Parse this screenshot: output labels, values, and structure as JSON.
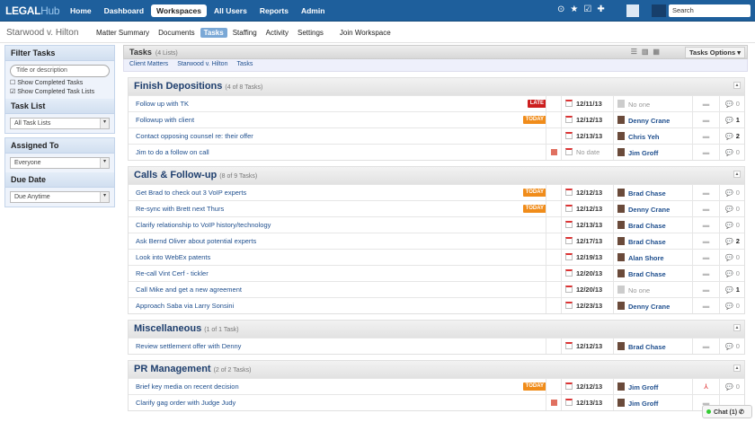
{
  "app": {
    "logo": "LEGALHub",
    "nav": [
      "Home",
      "Dashboard",
      "Workspaces",
      "All Users",
      "Reports",
      "Admin"
    ],
    "active_nav": "Workspaces",
    "search_placeholder": "Search"
  },
  "matter": {
    "title": "Starwood v. Hilton",
    "tabs": [
      "Matter Summary",
      "Documents",
      "Tasks",
      "Staffing",
      "Activity",
      "Settings"
    ],
    "active_tab": "Tasks",
    "join": "Join Workspace"
  },
  "sidebar": {
    "filter_title": "Filter Tasks",
    "search_placeholder": "Title or description",
    "show_completed_tasks": "Show Completed Tasks",
    "show_completed_lists": "Show Completed Task Lists",
    "show_completed_tasks_checked": false,
    "show_completed_lists_checked": true,
    "task_list_title": "Task List",
    "task_list_value": "All Task Lists",
    "assigned_title": "Assigned To",
    "assigned_value": "Everyone",
    "due_title": "Due Date",
    "due_value": "Due Anytime"
  },
  "main": {
    "title": "Tasks",
    "count": "(4 Lists)",
    "options": "Tasks Options",
    "breadcrumb": [
      "Client Matters",
      "Starwood v. Hilton",
      "Tasks"
    ],
    "sections": [
      {
        "name": "Finish Depositions",
        "count": "(4 of 8 Tasks)",
        "rows": [
          {
            "title": "Follow up with TK",
            "badge": "LATE",
            "flag": false,
            "date": "12/11/13",
            "assignee": "No one",
            "comments": "0"
          },
          {
            "title": "Followup with client",
            "badge": "TODAY",
            "flag": false,
            "date": "12/12/13",
            "assignee": "Denny Crane",
            "comments": "1"
          },
          {
            "title": "Contact opposing counsel re: their offer",
            "badge": "",
            "flag": false,
            "date": "12/13/13",
            "assignee": "Chris Yeh",
            "comments": "2"
          },
          {
            "title": "Jim to do a follow on call",
            "badge": "",
            "flag": true,
            "date": "No date",
            "assignee": "Jim Groff",
            "comments": "0"
          }
        ]
      },
      {
        "name": "Calls & Follow-up",
        "count": "(8 of 9 Tasks)",
        "rows": [
          {
            "title": "Get Brad to check out 3 VoIP experts",
            "badge": "TODAY",
            "flag": false,
            "date": "12/12/13",
            "assignee": "Brad Chase",
            "comments": "0"
          },
          {
            "title": "Re-sync with Brett next Thurs",
            "badge": "TODAY",
            "flag": false,
            "date": "12/12/13",
            "assignee": "Denny Crane",
            "comments": "0"
          },
          {
            "title": "Clarify relationship to VoIP history/technology",
            "badge": "",
            "flag": false,
            "date": "12/13/13",
            "assignee": "Brad Chase",
            "comments": "0"
          },
          {
            "title": "Ask Bernd Oliver about potential experts",
            "badge": "",
            "flag": false,
            "date": "12/17/13",
            "assignee": "Brad Chase",
            "comments": "2"
          },
          {
            "title": "Look into WebEx patents",
            "badge": "",
            "flag": false,
            "date": "12/19/13",
            "assignee": "Alan Shore",
            "comments": "0"
          },
          {
            "title": "Re-call Vint Cerf - tickler",
            "badge": "",
            "flag": false,
            "date": "12/20/13",
            "assignee": "Brad Chase",
            "comments": "0"
          },
          {
            "title": "Call Mike and get a new agreement",
            "badge": "",
            "flag": false,
            "date": "12/20/13",
            "assignee": "No one",
            "comments": "1"
          },
          {
            "title": "Approach Saba via Larry Sonsini",
            "badge": "",
            "flag": false,
            "date": "12/23/13",
            "assignee": "Denny Crane",
            "comments": "0"
          }
        ]
      },
      {
        "name": "Miscellaneous",
        "count": "(1 of 1 Task)",
        "rows": [
          {
            "title": "Review settlement offer with Denny",
            "badge": "",
            "flag": false,
            "date": "12/12/13",
            "assignee": "Brad Chase",
            "comments": "0"
          }
        ]
      },
      {
        "name": "PR Management",
        "count": "(2 of 2 Tasks)",
        "rows": [
          {
            "title": "Brief key media on recent decision",
            "badge": "TODAY",
            "flag": false,
            "date": "12/12/13",
            "assignee": "Jim Groff",
            "comments": "0",
            "attachment": "pdf-icon"
          },
          {
            "title": "Clarify gag order with Judge Judy",
            "badge": "",
            "flag": true,
            "date": "12/13/13",
            "assignee": "Jim Groff",
            "comments": ""
          }
        ]
      }
    ]
  },
  "chat": {
    "label": "Chat (1)"
  },
  "colors": {
    "nav": "#1e5f9c",
    "late": "#cc1f1f",
    "today": "#f08c1a",
    "link": "#1f4f8e"
  }
}
